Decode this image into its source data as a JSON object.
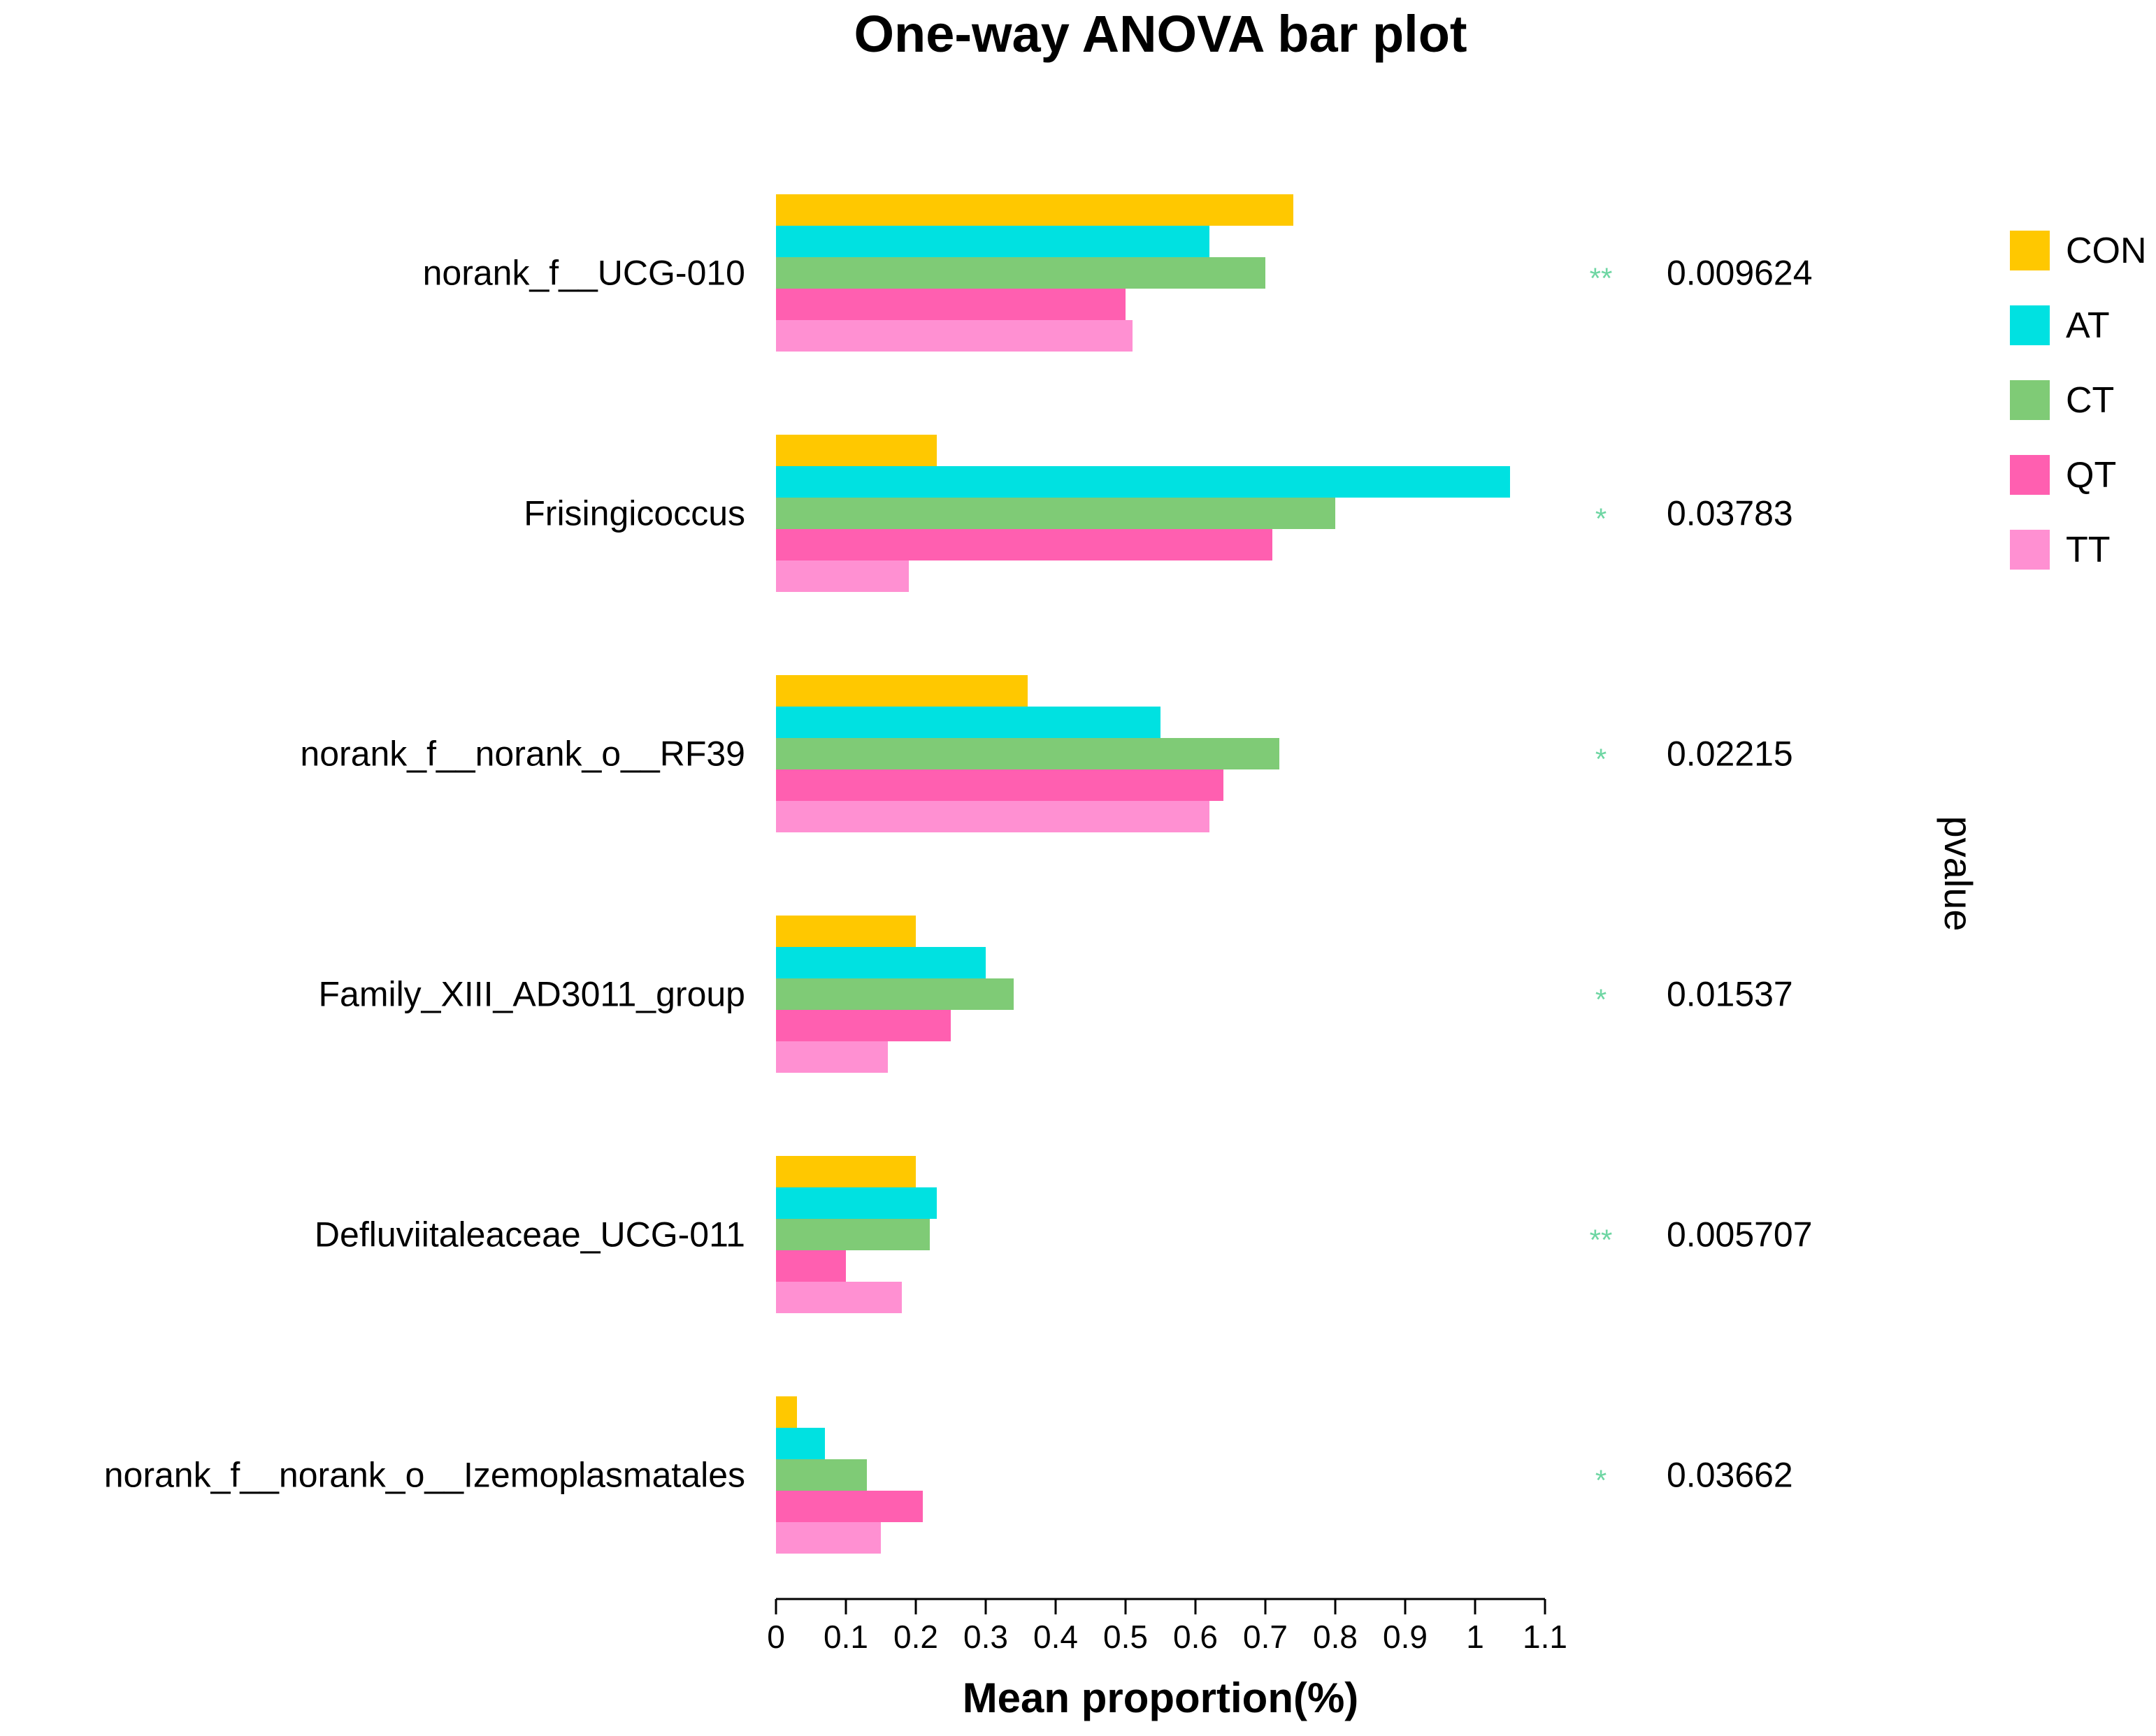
{
  "chart_data": {
    "type": "bar",
    "orientation": "horizontal",
    "title": "One-way ANOVA bar plot",
    "xlabel": "Mean proportion(%)",
    "pvalue_label": "pvalue",
    "xlim": [
      0,
      1.1
    ],
    "xticks": [
      0,
      0.1,
      0.2,
      0.3,
      0.4,
      0.5,
      0.6,
      0.7,
      0.8,
      0.9,
      1,
      1.1
    ],
    "xtick_labels": [
      "0",
      "0.1",
      "0.2",
      "0.3",
      "0.4",
      "0.5",
      "0.6",
      "0.7",
      "0.8",
      "0.9",
      "1",
      "1.1"
    ],
    "categories": [
      "norank_f__UCG-010",
      "Frisingicoccus",
      "norank_f__norank_o__RF39",
      "Family_XIII_AD3011_group",
      "Defluviitaleaceae_UCG-011",
      "norank_f__norank_o__Izemoplasmatales"
    ],
    "series": [
      {
        "name": "CON",
        "color": "#ffc800",
        "values": [
          0.74,
          0.23,
          0.36,
          0.2,
          0.2,
          0.03
        ]
      },
      {
        "name": "AT",
        "color": "#00e1e1",
        "values": [
          0.62,
          1.05,
          0.55,
          0.3,
          0.23,
          0.07
        ]
      },
      {
        "name": "CT",
        "color": "#7fcb76",
        "values": [
          0.7,
          0.8,
          0.72,
          0.34,
          0.22,
          0.13
        ]
      },
      {
        "name": "QT",
        "color": "#ff5fb0",
        "values": [
          0.5,
          0.71,
          0.64,
          0.25,
          0.1,
          0.21
        ]
      },
      {
        "name": "TT",
        "color": "#ff90d2",
        "values": [
          0.51,
          0.19,
          0.62,
          0.16,
          0.18,
          0.15
        ]
      }
    ],
    "significance": [
      "**",
      "*",
      "*",
      "*",
      "**",
      "*"
    ],
    "pvalues": [
      "0.009624",
      "0.03783",
      "0.02215",
      "0.01537",
      "0.005707",
      "0.03662"
    ],
    "legend_position": "right"
  }
}
